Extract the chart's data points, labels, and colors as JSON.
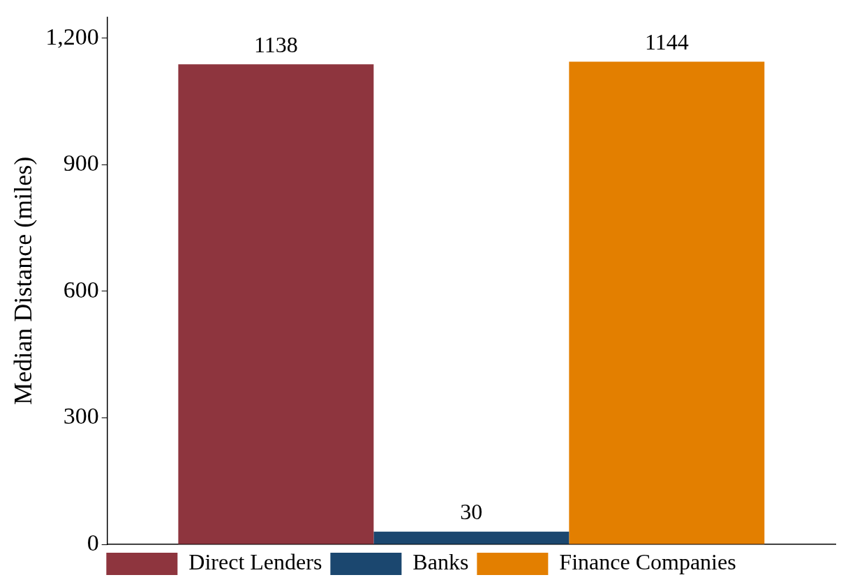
{
  "chart_data": {
    "type": "bar",
    "ylabel": "Median Distance (miles)",
    "categories": [
      null
    ],
    "series": [
      {
        "name": "Direct Lenders",
        "color": "#8e353e",
        "values": [
          1138
        ]
      },
      {
        "name": "Banks",
        "color": "#1b476f",
        "values": [
          30
        ]
      },
      {
        "name": "Finance Companies",
        "color": "#e37f00",
        "values": [
          1144
        ]
      }
    ],
    "ylim": [
      0,
      1250
    ],
    "yticks": [
      0,
      300,
      600,
      900,
      {
        "value": 1200,
        "label": "1,200"
      }
    ],
    "grid": false,
    "legend": "bottom",
    "data_labels": true
  }
}
